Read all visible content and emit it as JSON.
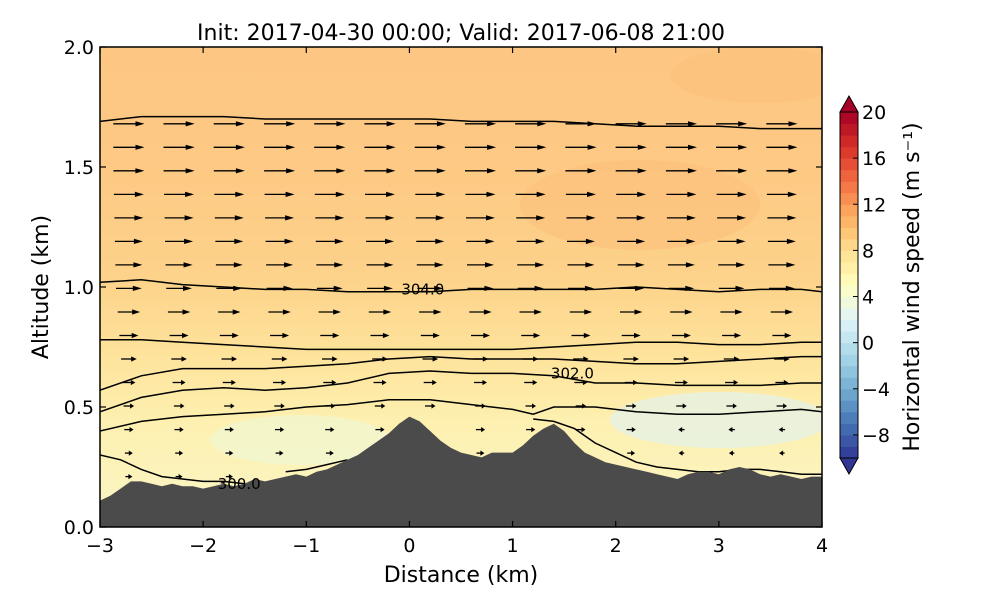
{
  "chart_data": {
    "type": "contourf-quiver",
    "title": "Init: 2017-04-30 00:00; Valid: 2017-06-08 21:00",
    "xlabel": "Distance (km)",
    "ylabel": "Altitude (km)",
    "xlim": [
      -3,
      4
    ],
    "ylim": [
      0.0,
      2.0
    ],
    "x_ticks": [
      -3,
      -2,
      -1,
      0,
      1,
      2,
      3,
      4
    ],
    "x_tick_labels": [
      "−3",
      "−2",
      "−1",
      "0",
      "1",
      "2",
      "3",
      "4"
    ],
    "y_ticks": [
      0.0,
      0.5,
      1.0,
      1.5,
      2.0
    ],
    "y_tick_labels": [
      "0.0",
      "0.5",
      "1.0",
      "1.5",
      "2.0"
    ],
    "grid": false,
    "colorbar": {
      "label": "Horizontal wind speed (m s⁻¹)",
      "range": [
        -10,
        20
      ],
      "extend": "both",
      "ticks": [
        -8,
        -4,
        0,
        4,
        8,
        12,
        16,
        20
      ],
      "tick_labels": [
        "−8",
        "−4",
        "0",
        "4",
        "8",
        "12",
        "16",
        "20"
      ],
      "colormap": "RdYlBu_r"
    },
    "terrain_color": "#4b4b4b",
    "terrain": {
      "x": [
        -3.0,
        -2.9,
        -2.8,
        -2.7,
        -2.6,
        -2.5,
        -2.4,
        -2.3,
        -2.2,
        -2.1,
        -2.0,
        -1.9,
        -1.8,
        -1.7,
        -1.6,
        -1.5,
        -1.4,
        -1.3,
        -1.2,
        -1.1,
        -1.0,
        -0.9,
        -0.8,
        -0.7,
        -0.6,
        -0.5,
        -0.4,
        -0.3,
        -0.2,
        -0.1,
        0.0,
        0.1,
        0.2,
        0.3,
        0.4,
        0.5,
        0.6,
        0.7,
        0.8,
        0.9,
        1.0,
        1.1,
        1.2,
        1.3,
        1.4,
        1.5,
        1.6,
        1.7,
        1.8,
        1.9,
        2.0,
        2.1,
        2.2,
        2.3,
        2.4,
        2.5,
        2.6,
        2.7,
        2.8,
        2.9,
        3.0,
        3.1,
        3.2,
        3.3,
        3.4,
        3.5,
        3.6,
        3.7,
        3.8,
        3.9,
        4.0
      ],
      "z": [
        0.11,
        0.13,
        0.16,
        0.19,
        0.19,
        0.18,
        0.17,
        0.18,
        0.17,
        0.17,
        0.16,
        0.17,
        0.18,
        0.17,
        0.18,
        0.2,
        0.19,
        0.2,
        0.21,
        0.22,
        0.21,
        0.23,
        0.24,
        0.26,
        0.28,
        0.3,
        0.33,
        0.36,
        0.39,
        0.43,
        0.46,
        0.44,
        0.4,
        0.36,
        0.33,
        0.31,
        0.3,
        0.29,
        0.31,
        0.31,
        0.31,
        0.34,
        0.38,
        0.41,
        0.43,
        0.4,
        0.35,
        0.31,
        0.29,
        0.27,
        0.26,
        0.25,
        0.24,
        0.23,
        0.22,
        0.21,
        0.2,
        0.22,
        0.23,
        0.23,
        0.22,
        0.24,
        0.25,
        0.24,
        0.22,
        0.21,
        0.22,
        0.21,
        0.2,
        0.21,
        0.21
      ]
    },
    "wind_field_description_levels": {
      "altitude_km": [
        0.0,
        0.3,
        0.5,
        0.7,
        1.0,
        1.5,
        2.0
      ],
      "typical_speed_ms": [
        1,
        1.5,
        2,
        3,
        5,
        6,
        6
      ]
    },
    "theta_contours": [
      {
        "label": "",
        "x": [
          -3.0,
          -2.8,
          -2.6,
          -2.4,
          -2.2,
          -2.0,
          -1.8,
          -1.6
        ],
        "z": [
          0.3,
          0.28,
          0.24,
          0.21,
          0.2,
          0.19,
          0.19,
          0.18
        ]
      },
      {
        "label": "300.0",
        "x": [
          -1.2,
          -1.0,
          -0.8,
          -0.6
        ],
        "z": [
          0.23,
          0.24,
          0.26,
          0.28
        ]
      },
      {
        "label": "",
        "x": [
          1.2,
          1.4,
          1.6,
          1.8,
          2.0,
          2.2,
          2.4,
          2.6,
          2.8,
          3.0,
          3.2,
          3.4,
          3.6,
          3.8,
          4.0
        ],
        "z": [
          0.45,
          0.44,
          0.41,
          0.35,
          0.31,
          0.27,
          0.25,
          0.24,
          0.23,
          0.23,
          0.24,
          0.24,
          0.23,
          0.22,
          0.22
        ]
      },
      {
        "label": "",
        "x": [
          -3.0,
          -2.6,
          -2.2,
          -1.8,
          -1.4,
          -1.0,
          -0.6,
          -0.2,
          0.2,
          0.6,
          1.0,
          1.2,
          1.4,
          1.8,
          2.2,
          2.6,
          3.0,
          3.4,
          3.8,
          4.0
        ],
        "z": [
          0.4,
          0.44,
          0.46,
          0.47,
          0.48,
          0.5,
          0.51,
          0.53,
          0.53,
          0.51,
          0.49,
          0.47,
          0.5,
          0.5,
          0.48,
          0.47,
          0.47,
          0.48,
          0.49,
          0.48
        ]
      },
      {
        "label": "302.0",
        "x": [
          -3.0,
          -2.6,
          -2.2,
          -1.8,
          -1.4,
          -1.0,
          -0.6,
          -0.2,
          0.2,
          0.6,
          1.0,
          1.4,
          1.8,
          2.2,
          2.6,
          3.0,
          3.4,
          3.8,
          4.0
        ],
        "z": [
          0.48,
          0.54,
          0.57,
          0.58,
          0.57,
          0.58,
          0.6,
          0.64,
          0.65,
          0.64,
          0.64,
          0.63,
          0.6,
          0.6,
          0.59,
          0.59,
          0.59,
          0.6,
          0.6
        ]
      },
      {
        "label": "",
        "x": [
          -3.0,
          -2.6,
          -2.2,
          -1.8,
          -1.4,
          -1.0,
          -0.6,
          -0.2,
          0.2,
          0.6,
          1.0,
          1.4,
          1.8,
          2.2,
          2.6,
          3.0,
          3.4,
          3.8,
          4.0
        ],
        "z": [
          0.57,
          0.63,
          0.66,
          0.66,
          0.66,
          0.67,
          0.68,
          0.7,
          0.71,
          0.7,
          0.7,
          0.7,
          0.69,
          0.68,
          0.68,
          0.69,
          0.7,
          0.71,
          0.71
        ]
      },
      {
        "label": "",
        "x": [
          -3.0,
          -2.6,
          -2.2,
          -1.8,
          -1.4,
          -1.0,
          -0.6,
          -0.2,
          0.2,
          0.6,
          1.0,
          1.4,
          1.8,
          2.2,
          2.6,
          3.0,
          3.4,
          3.8,
          4.0
        ],
        "z": [
          0.78,
          0.78,
          0.77,
          0.76,
          0.75,
          0.74,
          0.74,
          0.74,
          0.74,
          0.74,
          0.74,
          0.75,
          0.76,
          0.77,
          0.77,
          0.76,
          0.76,
          0.77,
          0.77
        ]
      },
      {
        "label": "304.0",
        "x": [
          -3.0,
          -2.6,
          -2.2,
          -1.8,
          -1.4,
          -1.0,
          -0.6,
          -0.2,
          0.2,
          0.6,
          1.0,
          1.4,
          1.8,
          2.2,
          2.6,
          3.0,
          3.4,
          3.8,
          4.0
        ],
        "z": [
          1.02,
          1.03,
          1.01,
          1.0,
          0.99,
          0.99,
          0.98,
          0.98,
          0.98,
          0.99,
          0.99,
          0.99,
          0.99,
          1.0,
          0.99,
          0.98,
          0.99,
          0.99,
          0.98
        ]
      },
      {
        "label": "",
        "x": [
          -3.0,
          -2.6,
          -2.2,
          -1.8,
          -1.4,
          -1.0,
          -0.6,
          -0.2,
          0.2,
          0.6,
          1.0,
          1.4,
          1.8,
          2.2,
          2.6,
          3.0,
          3.4,
          3.8,
          4.0
        ],
        "z": [
          1.69,
          1.71,
          1.71,
          1.71,
          1.7,
          1.7,
          1.7,
          1.7,
          1.7,
          1.69,
          1.69,
          1.69,
          1.68,
          1.67,
          1.67,
          1.67,
          1.66,
          1.66,
          1.66
        ]
      }
    ],
    "contour_label_positions": [
      {
        "label": "300.0",
        "x": -1.65,
        "z": 0.18
      },
      {
        "label": "302.0",
        "x": 1.58,
        "z": 0.64
      },
      {
        "label": "304.0",
        "x": 0.13,
        "z": 0.99
      }
    ]
  }
}
